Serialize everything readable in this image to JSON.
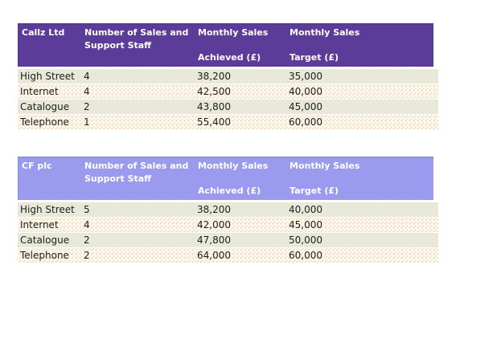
{
  "window": {
    "background": "#ffffff"
  },
  "colors": {
    "table1_header_bg": "#5b3c98",
    "table2_header_bg": "#9a9aee",
    "header_text": "#fffef6",
    "body_text": "#1d1d1d",
    "row_band_dither": "#e8e8d4",
    "row_band_cream": "#fefcf0"
  },
  "tables": [
    {
      "title": "Callz Ltd",
      "header_bg": "#5b3c98",
      "columns": {
        "col1": "Callz Ltd",
        "col2": "Number of Sales and Support Staff",
        "col3_title": "Monthly Sales",
        "col3_sub": "Achieved (£)",
        "col4_title": "Monthly Sales",
        "col4_sub": "Target (£)"
      },
      "rows": [
        {
          "channel": "High Street",
          "staff": "4",
          "achieved": "38,200",
          "target": "35,000"
        },
        {
          "channel": "Internet",
          "staff": "4",
          "achieved": "42,500",
          "target": "40,000"
        },
        {
          "channel": "Catalogue",
          "staff": "2",
          "achieved": "43,800",
          "target": "45,000"
        },
        {
          "channel": "Telephone",
          "staff": "1",
          "achieved": "55,400",
          "target": "60,000"
        }
      ]
    },
    {
      "title": "CF plc",
      "header_bg": "#9a9aee",
      "columns": {
        "col1": "CF plc",
        "col2": "Number of Sales and Support Staff",
        "col3_title": "Monthly Sales",
        "col3_sub": "Achieved (£)",
        "col4_title": "Monthly Sales",
        "col4_sub": "Target (£)"
      },
      "rows": [
        {
          "channel": "High Street",
          "staff": "5",
          "achieved": "38,200",
          "target": "40,000"
        },
        {
          "channel": "Internet",
          "staff": "4",
          "achieved": "42,000",
          "target": "45,000"
        },
        {
          "channel": "Catalogue",
          "staff": "2",
          "achieved": "47,800",
          "target": "50,000"
        },
        {
          "channel": "Telephone",
          "staff": "2",
          "achieved": "64,000",
          "target": "60,000"
        }
      ]
    }
  ]
}
